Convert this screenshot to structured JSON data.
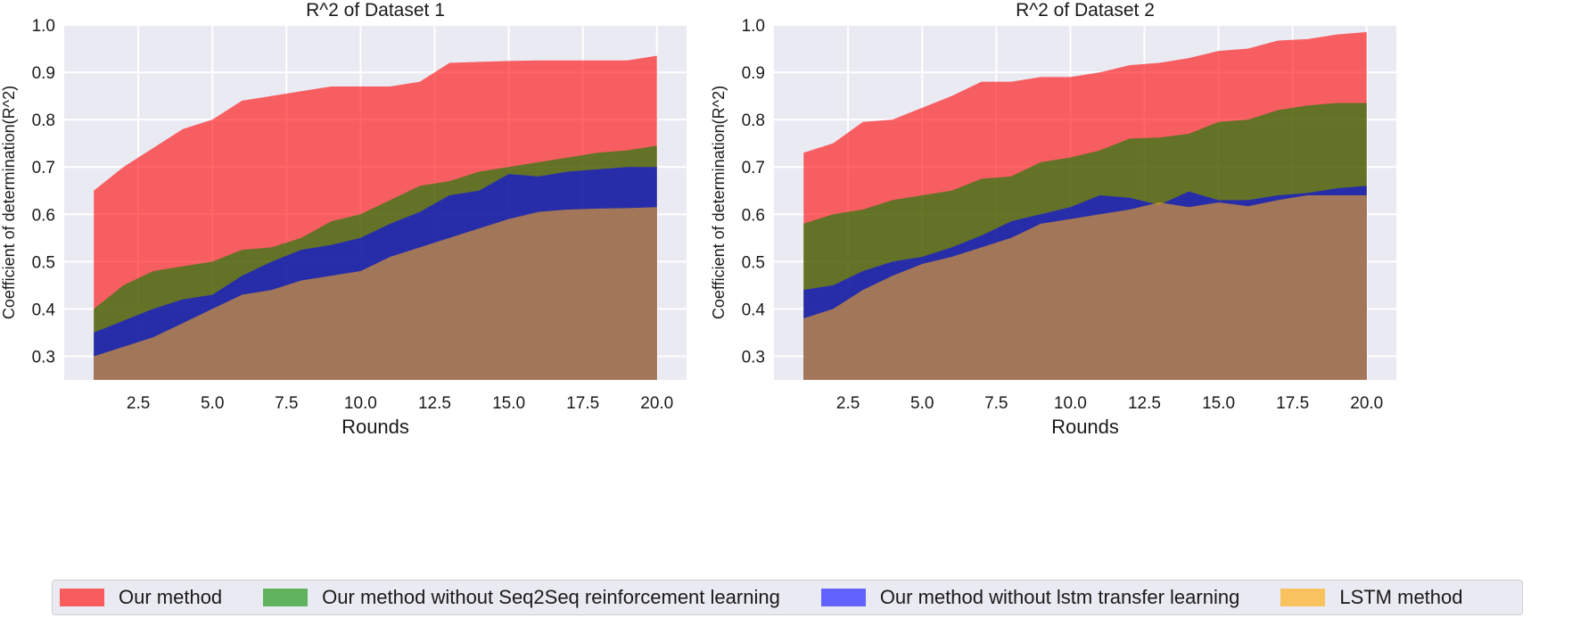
{
  "colors": {
    "plot_background": "#eaeaf2",
    "grid": "#ffffff",
    "series": [
      "#ff0000",
      "#008000",
      "#0000ff",
      "#f5a623"
    ],
    "series_opacity": 0.6
  },
  "legend": [
    {
      "label": "Our method",
      "color": "#f95c5c"
    },
    {
      "label": "Our method without Seq2Seq reinforcement learning",
      "color": "#5fb35f"
    },
    {
      "label": "Our method without lstm transfer learning",
      "color": "#6262ff"
    },
    {
      "label": "LSTM method",
      "color": "#f8c25f"
    }
  ],
  "chart_data": [
    {
      "type": "area",
      "title": "R^2 of Dataset 1",
      "xlabel": "Rounds",
      "ylabel": "Coefficient of determination(R^2)",
      "xlim": [
        0,
        21
      ],
      "ylim": [
        0.25,
        1.0
      ],
      "xticks": [
        2.5,
        5.0,
        7.5,
        10.0,
        12.5,
        15.0,
        17.5,
        20.0
      ],
      "xtick_labels": [
        "2.5",
        "5.0",
        "7.5",
        "10.0",
        "12.5",
        "15.0",
        "17.5",
        "20.0"
      ],
      "yticks": [
        0.3,
        0.4,
        0.5,
        0.6,
        0.7,
        0.8,
        0.9,
        1.0
      ],
      "ytick_labels": [
        "0.3",
        "0.4",
        "0.5",
        "0.6",
        "0.7",
        "0.8",
        "0.9",
        "1.0"
      ],
      "x": [
        1,
        2,
        3,
        4,
        5,
        6,
        7,
        8,
        9,
        10,
        11,
        12,
        13,
        14,
        15,
        16,
        17,
        18,
        19,
        20
      ],
      "series": [
        {
          "name": "Our method",
          "values": [
            0.65,
            0.7,
            0.74,
            0.78,
            0.8,
            0.84,
            0.85,
            0.86,
            0.87,
            0.87,
            0.87,
            0.88,
            0.92,
            0.922,
            0.924,
            0.925,
            0.925,
            0.925,
            0.925,
            0.935
          ]
        },
        {
          "name": "Our method without Seq2Seq reinforcement learning",
          "values": [
            0.4,
            0.45,
            0.48,
            0.49,
            0.5,
            0.525,
            0.53,
            0.55,
            0.585,
            0.6,
            0.63,
            0.66,
            0.67,
            0.69,
            0.7,
            0.71,
            0.72,
            0.73,
            0.735,
            0.745
          ]
        },
        {
          "name": "Our method without lstm transfer learning",
          "values": [
            0.35,
            0.375,
            0.4,
            0.42,
            0.43,
            0.47,
            0.5,
            0.525,
            0.535,
            0.55,
            0.58,
            0.605,
            0.64,
            0.65,
            0.685,
            0.68,
            0.69,
            0.695,
            0.7,
            0.7
          ]
        },
        {
          "name": "LSTM method",
          "values": [
            0.3,
            0.32,
            0.34,
            0.37,
            0.4,
            0.43,
            0.44,
            0.46,
            0.47,
            0.48,
            0.51,
            0.53,
            0.55,
            0.57,
            0.59,
            0.605,
            0.61,
            0.612,
            0.613,
            0.615
          ]
        }
      ]
    },
    {
      "type": "area",
      "title": "R^2 of Dataset 2",
      "xlabel": "Rounds",
      "ylabel": "Coefficient of determination(R^2)",
      "xlim": [
        0,
        21
      ],
      "ylim": [
        0.25,
        1.0
      ],
      "xticks": [
        2.5,
        5.0,
        7.5,
        10.0,
        12.5,
        15.0,
        17.5,
        20.0
      ],
      "xtick_labels": [
        "2.5",
        "5.0",
        "7.5",
        "10.0",
        "12.5",
        "15.0",
        "17.5",
        "20.0"
      ],
      "yticks": [
        0.3,
        0.4,
        0.5,
        0.6,
        0.7,
        0.8,
        0.9,
        1.0
      ],
      "ytick_labels": [
        "0.3",
        "0.4",
        "0.5",
        "0.6",
        "0.7",
        "0.8",
        "0.9",
        "1.0"
      ],
      "x": [
        1,
        2,
        3,
        4,
        5,
        6,
        7,
        8,
        9,
        10,
        11,
        12,
        13,
        14,
        15,
        16,
        17,
        18,
        19,
        20
      ],
      "series": [
        {
          "name": "Our method",
          "values": [
            0.73,
            0.75,
            0.795,
            0.8,
            0.825,
            0.85,
            0.88,
            0.88,
            0.89,
            0.89,
            0.9,
            0.915,
            0.92,
            0.93,
            0.945,
            0.95,
            0.967,
            0.97,
            0.98,
            0.985
          ]
        },
        {
          "name": "Our method without Seq2Seq reinforcement learning",
          "values": [
            0.58,
            0.6,
            0.61,
            0.63,
            0.64,
            0.65,
            0.675,
            0.68,
            0.71,
            0.72,
            0.735,
            0.76,
            0.762,
            0.77,
            0.795,
            0.8,
            0.82,
            0.83,
            0.835,
            0.835
          ]
        },
        {
          "name": "Our method without lstm transfer learning",
          "values": [
            0.44,
            0.45,
            0.48,
            0.5,
            0.51,
            0.53,
            0.555,
            0.585,
            0.6,
            0.615,
            0.64,
            0.635,
            0.62,
            0.648,
            0.63,
            0.63,
            0.64,
            0.645,
            0.655,
            0.66
          ]
        },
        {
          "name": "LSTM method",
          "values": [
            0.38,
            0.4,
            0.44,
            0.47,
            0.495,
            0.51,
            0.53,
            0.55,
            0.58,
            0.59,
            0.6,
            0.61,
            0.625,
            0.615,
            0.625,
            0.617,
            0.63,
            0.64,
            0.64,
            0.64
          ]
        }
      ]
    }
  ]
}
